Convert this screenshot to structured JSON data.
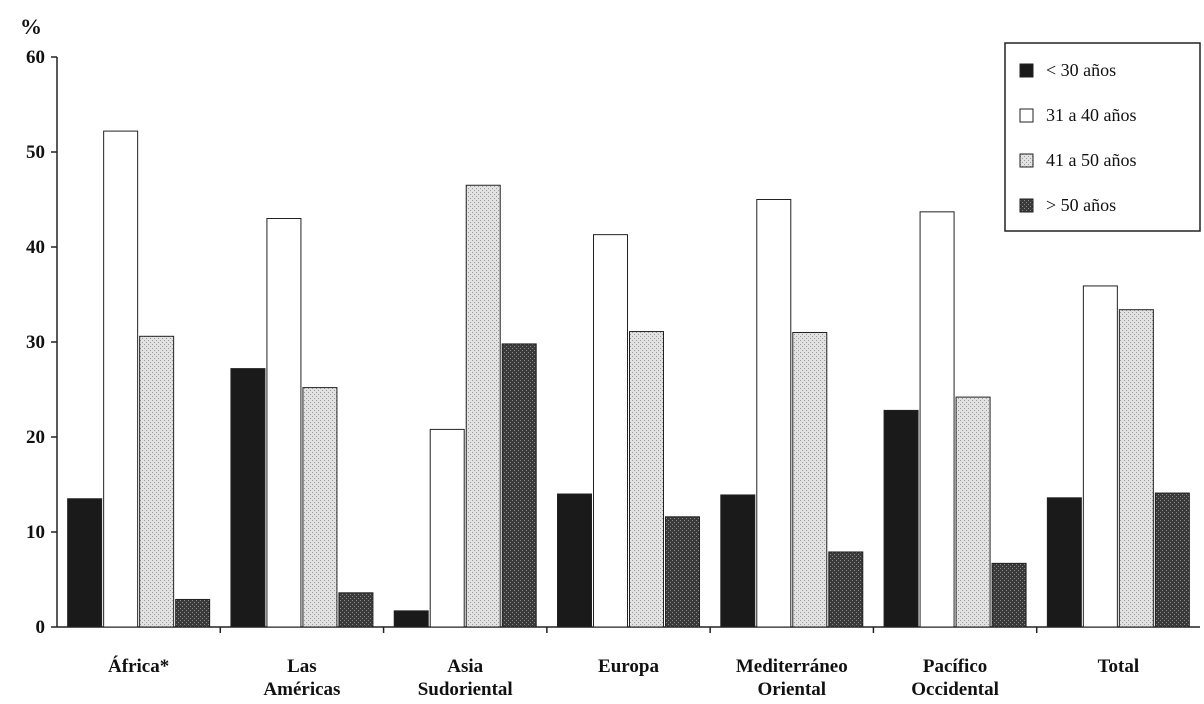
{
  "chart_data": {
    "type": "bar",
    "ylabel": "%",
    "xlabel": "",
    "ylim": [
      0,
      60
    ],
    "yticks": [
      0,
      10,
      20,
      30,
      40,
      50,
      60
    ],
    "grid": false,
    "legend_position": "top-right",
    "categories": [
      [
        "África*"
      ],
      [
        "Las",
        "Américas"
      ],
      [
        "Asia",
        "Sudoriental"
      ],
      [
        "Europa"
      ],
      [
        "Mediterráneo",
        "Oriental"
      ],
      [
        "Pacífico",
        "Occidental"
      ],
      [
        "Total"
      ]
    ],
    "series": [
      {
        "name": "< 30 años",
        "fill": "solid-dark",
        "color": "#1a1a1a",
        "values": [
          13.5,
          27.2,
          1.7,
          14.0,
          13.9,
          22.8,
          13.6
        ]
      },
      {
        "name": "31 a 40 años",
        "fill": "white",
        "color": "#ffffff",
        "values": [
          52.2,
          43.0,
          20.8,
          41.3,
          45.0,
          43.7,
          35.9
        ]
      },
      {
        "name": "41 a 50 años",
        "fill": "light-hatch",
        "color": "#d9d9d9",
        "values": [
          30.6,
          25.2,
          46.5,
          31.1,
          31.0,
          24.2,
          33.4
        ]
      },
      {
        "name": "> 50 años",
        "fill": "dark-hatch",
        "color": "#4a4a4a",
        "values": [
          2.9,
          3.6,
          29.8,
          11.6,
          7.9,
          6.7,
          14.1
        ]
      }
    ]
  }
}
